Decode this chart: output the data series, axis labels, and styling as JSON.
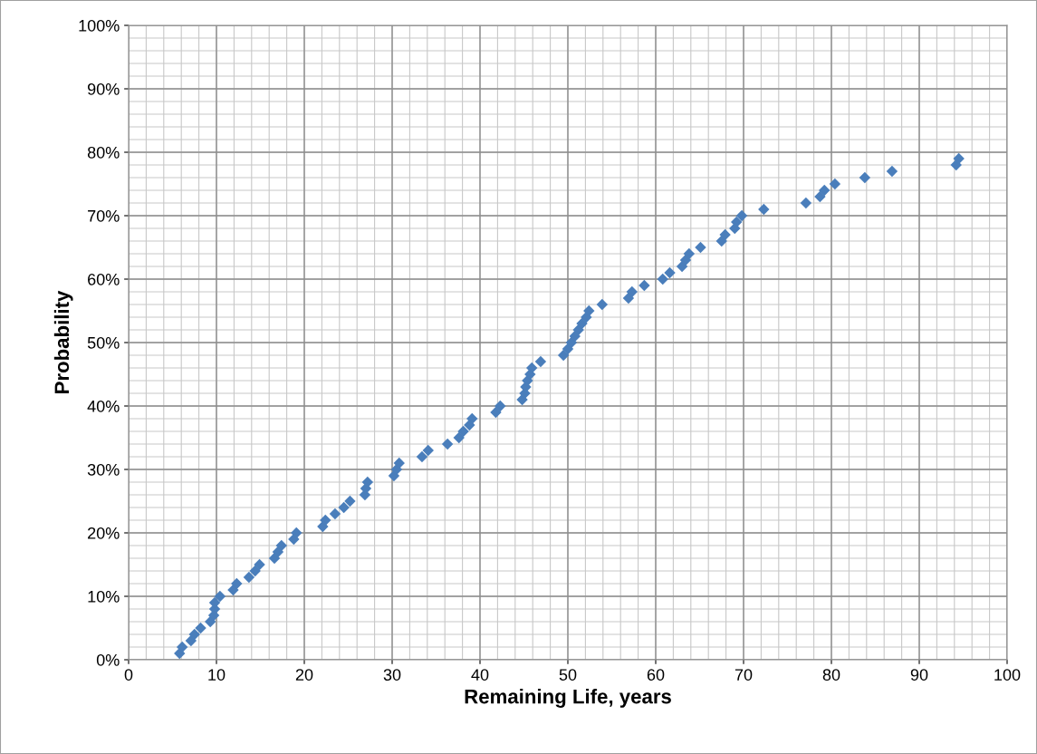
{
  "chart_data": {
    "type": "scatter",
    "xlabel": "Remaining Life, years",
    "ylabel": "Probability",
    "marker": "diamond",
    "grid": true,
    "legend": false,
    "xlim": [
      0,
      100
    ],
    "xticks": [
      0,
      10,
      20,
      30,
      40,
      50,
      60,
      70,
      80,
      90,
      100
    ],
    "ylim": [
      0,
      100
    ],
    "yticks": [
      {
        "value": 0,
        "label": "0%"
      },
      {
        "value": 10,
        "label": "10%"
      },
      {
        "value": 20,
        "label": "20%"
      },
      {
        "value": 30,
        "label": "30%"
      },
      {
        "value": 40,
        "label": "40%"
      },
      {
        "value": 50,
        "label": "50%"
      },
      {
        "value": 60,
        "label": "60%"
      },
      {
        "value": 70,
        "label": "70%"
      },
      {
        "value": 80,
        "label": "80%"
      },
      {
        "value": 90,
        "label": "90%"
      },
      {
        "value": 100,
        "label": "100%"
      }
    ],
    "series": [
      {
        "color": "#4a7ebb",
        "x": [
          5.8,
          6.1,
          7.1,
          7.5,
          8.2,
          9.3,
          9.7,
          9.8,
          9.8,
          10.4,
          11.9,
          12.3,
          13.7,
          14.4,
          14.9,
          16.6,
          17.0,
          17.4,
          18.8,
          19.1,
          22.1,
          22.4,
          23.5,
          24.5,
          25.2,
          26.9,
          27.0,
          27.2,
          30.2,
          30.5,
          30.8,
          33.4,
          34.1,
          36.3,
          37.6,
          38.1,
          38.8,
          39.1,
          41.8,
          42.3,
          44.8,
          45.1,
          45.2,
          45.4,
          45.7,
          45.9,
          46.9,
          49.5,
          50.0,
          50.4,
          50.8,
          51.2,
          51.6,
          52.1,
          52.4,
          53.9,
          56.9,
          57.3,
          58.7,
          60.8,
          61.6,
          63.0,
          63.4,
          63.8,
          65.1,
          67.5,
          67.9,
          69.0,
          69.2,
          69.8,
          72.3,
          77.1,
          78.7,
          79.2,
          80.4,
          83.8,
          86.9,
          94.2,
          94.5
        ],
        "values": [
          1,
          2,
          3,
          4,
          5,
          6,
          7,
          8,
          9,
          10,
          11,
          12,
          13,
          14,
          15,
          16,
          17,
          18,
          19,
          20,
          21,
          22,
          23,
          24,
          25,
          26,
          27,
          28,
          29,
          30,
          31,
          32,
          33,
          34,
          35,
          36,
          37,
          38,
          39,
          40,
          41,
          42,
          43,
          44,
          45,
          46,
          47,
          48,
          49,
          50,
          51,
          52,
          53,
          54,
          55,
          56,
          57,
          58,
          59,
          60,
          61,
          62,
          63,
          64,
          65,
          66,
          67,
          68,
          69,
          70,
          71,
          72,
          73,
          74,
          75,
          76,
          77,
          78,
          79
        ]
      }
    ]
  }
}
